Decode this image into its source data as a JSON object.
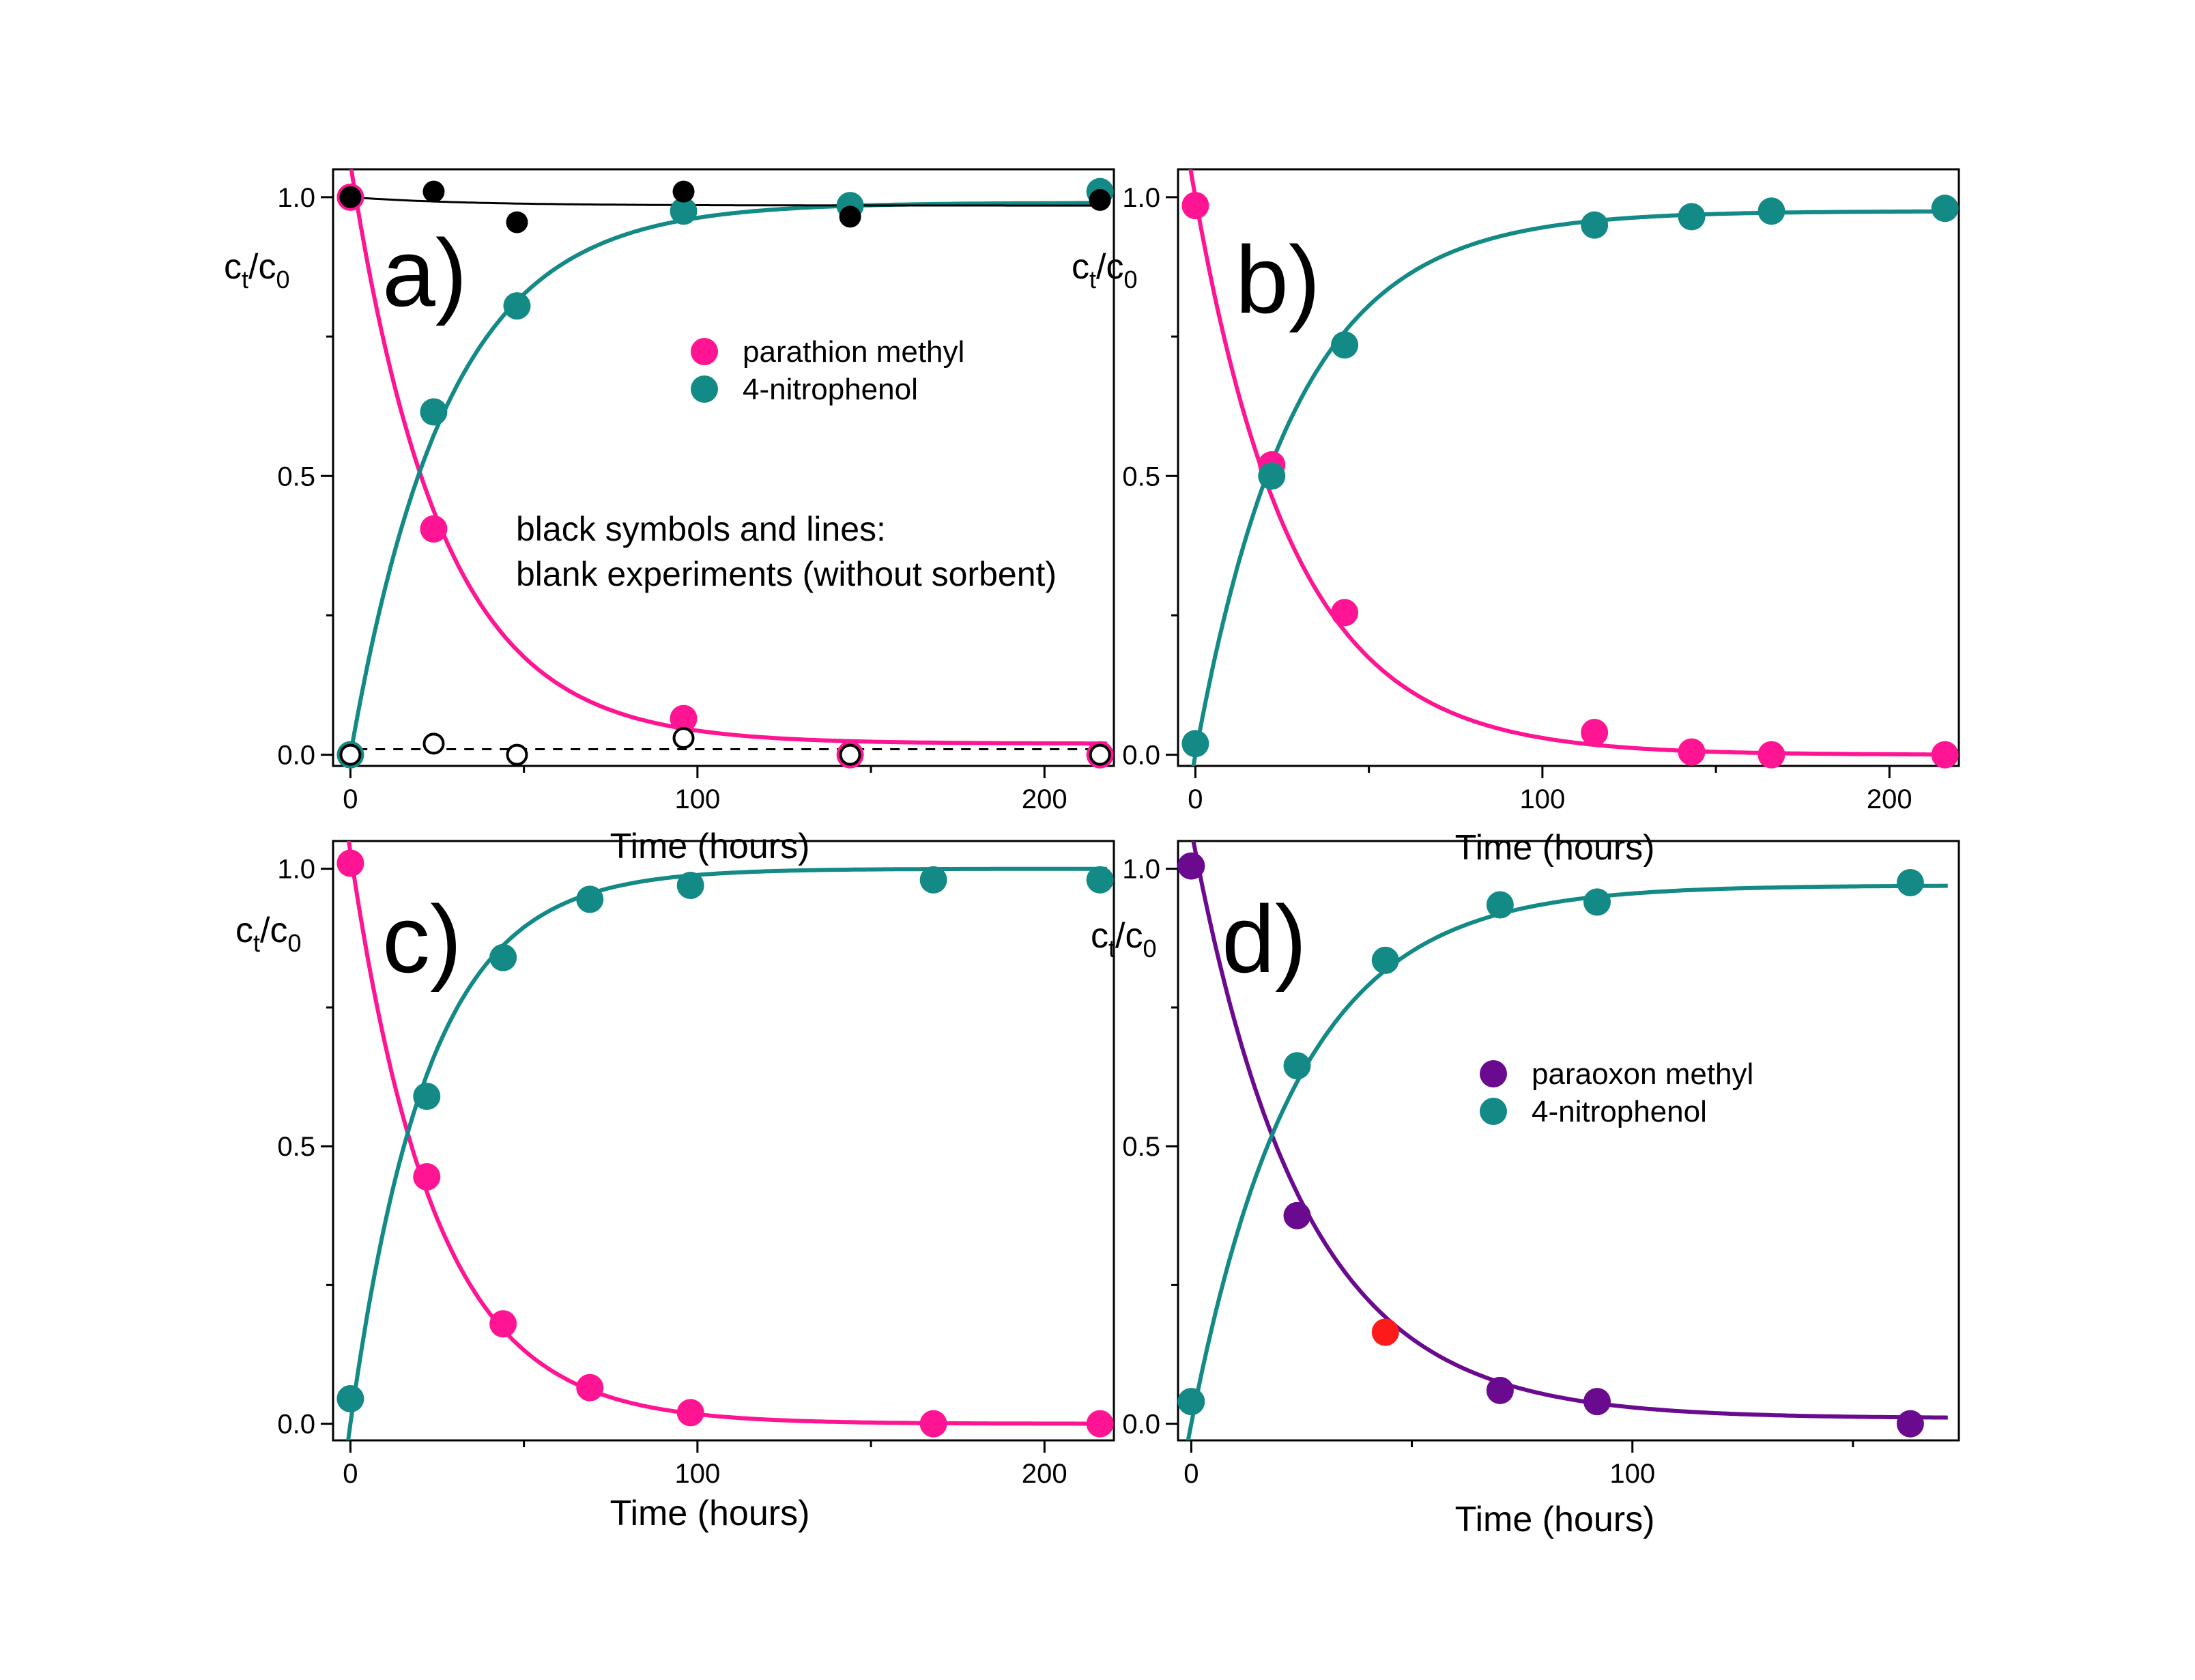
{
  "colors": {
    "pink": "#FF1493",
    "teal": "#138A85",
    "purple": "#6A0A8F",
    "red": "#FF1A1A",
    "black": "#000000"
  },
  "chart_data": [
    {
      "type": "scatter",
      "panel_label": "a)",
      "xlabel": "Time (hours)",
      "ylabel_main": "c",
      "ylabel_sub1": "t",
      "ylabel_mid": "/c",
      "ylabel_sub2": "0",
      "xlim": [
        -5,
        220
      ],
      "ylim": [
        -0.02,
        1.05
      ],
      "xticks": [
        0,
        100,
        200
      ],
      "xtick_labels": [
        "0",
        "100",
        "200"
      ],
      "yticks": [
        0,
        0.5,
        1
      ],
      "ytick_labels": [
        "0.0",
        "0.5",
        "1.0"
      ],
      "legend": [
        {
          "name": "parathion methyl",
          "color": "#FF1493"
        },
        {
          "name": "4-nitrophenol",
          "color": "#138A85"
        }
      ],
      "annotation": [
        "black symbols and lines:",
        "blank experiments (without sorbent)"
      ],
      "series": [
        {
          "name": "parathion methyl",
          "color": "#FF1493",
          "marker": "filled",
          "x": [
            0,
            24,
            96,
            144,
            216
          ],
          "y": [
            1.0,
            0.405,
            0.065,
            0.0,
            0.0
          ],
          "fit": {
            "type": "decay",
            "y0": 1.06,
            "plateau": 0.02,
            "k": 0.038,
            "style": "solid"
          }
        },
        {
          "name": "4-nitrophenol",
          "color": "#138A85",
          "marker": "filled",
          "x": [
            0,
            24,
            48,
            96,
            144,
            216
          ],
          "y": [
            0.0,
            0.615,
            0.805,
            0.975,
            0.985,
            1.01
          ],
          "fit": {
            "type": "rise",
            "plateau": 0.99,
            "k": 0.036,
            "style": "solid"
          }
        },
        {
          "name": "blank parathion methyl",
          "color": "#000000",
          "marker": "filled",
          "x": [
            0,
            24,
            48,
            96,
            144,
            216
          ],
          "y": [
            1.0,
            1.01,
            0.955,
            1.01,
            0.965,
            0.995
          ],
          "fit": {
            "type": "decay",
            "y0": 1.0,
            "plateau": 0.985,
            "k": 0.03,
            "style": "solid"
          }
        },
        {
          "name": "blank 4-nitrophenol",
          "color": "#000000",
          "marker": "open",
          "x": [
            0,
            24,
            48,
            96,
            144,
            216
          ],
          "y": [
            0.0,
            0.02,
            0.0,
            0.03,
            0.0,
            0.0
          ],
          "fit": {
            "type": "line",
            "a": 0.01,
            "b": 0.0,
            "style": "dashed"
          }
        }
      ]
    },
    {
      "type": "scatter",
      "panel_label": "b)",
      "xlabel": "Time (hours)",
      "ylabel_main": "c",
      "ylabel_sub1": "t",
      "ylabel_mid": "/c",
      "ylabel_sub2": "0",
      "xlim": [
        -5,
        220
      ],
      "ylim": [
        -0.02,
        1.05
      ],
      "xticks": [
        0,
        100,
        200
      ],
      "xtick_labels": [
        "0",
        "100",
        "200"
      ],
      "yticks": [
        0,
        0.5,
        1
      ],
      "ytick_labels": [
        "0.0",
        "0.5",
        "1.0"
      ],
      "series": [
        {
          "name": "parathion methyl",
          "color": "#FF1493",
          "marker": "filled",
          "x": [
            0,
            22,
            43,
            115,
            143,
            166,
            216
          ],
          "y": [
            0.985,
            0.52,
            0.255,
            0.04,
            0.005,
            0.0,
            0.0
          ],
          "fit": {
            "type": "decay",
            "y0": 1.0,
            "plateau": 0.0,
            "k": 0.035,
            "style": "solid"
          }
        },
        {
          "name": "4-nitrophenol",
          "color": "#138A85",
          "marker": "filled",
          "x": [
            0,
            22,
            43,
            115,
            143,
            166,
            216
          ],
          "y": [
            0.02,
            0.5,
            0.735,
            0.95,
            0.965,
            0.975,
            0.98
          ],
          "fit": {
            "type": "rise",
            "plateau": 0.975,
            "k": 0.035,
            "style": "solid"
          }
        }
      ]
    },
    {
      "type": "scatter",
      "panel_label": "c)",
      "xlabel": "Time (hours)",
      "ylabel_main": "c",
      "ylabel_sub1": "t",
      "ylabel_mid": "/c",
      "ylabel_sub2": "0",
      "xlim": [
        -5,
        220
      ],
      "ylim": [
        -0.03,
        1.05
      ],
      "xticks": [
        0,
        100,
        200
      ],
      "xtick_labels": [
        "0",
        "100",
        "200"
      ],
      "yticks": [
        0,
        0.5,
        1
      ],
      "ytick_labels": [
        "0.0",
        "0.5",
        "1.0"
      ],
      "series": [
        {
          "name": "parathion methyl",
          "color": "#FF1493",
          "marker": "filled",
          "x": [
            0,
            22,
            44,
            69,
            98,
            168,
            216
          ],
          "y": [
            1.01,
            0.445,
            0.18,
            0.065,
            0.02,
            0.0,
            0.0
          ],
          "fit": {
            "type": "decay",
            "y0": 1.03,
            "plateau": 0.0,
            "k": 0.041,
            "style": "solid"
          }
        },
        {
          "name": "4-nitrophenol",
          "color": "#138A85",
          "marker": "filled",
          "x": [
            0,
            22,
            44,
            69,
            98,
            168,
            216
          ],
          "y": [
            0.045,
            0.59,
            0.84,
            0.945,
            0.97,
            0.98,
            0.98
          ],
          "fit": {
            "type": "rise",
            "plateau": 1.0,
            "k": 0.045,
            "style": "solid"
          }
        }
      ]
    },
    {
      "type": "scatter",
      "panel_label": "d)",
      "xlabel": "Time (hours)",
      "ylabel_main": "c",
      "ylabel_sub1": "t",
      "ylabel_mid": "/c",
      "ylabel_sub2": "0",
      "xlim": [
        -3,
        174
      ],
      "ylim": [
        -0.03,
        1.05
      ],
      "xticks": [
        0,
        100
      ],
      "xtick_labels": [
        "0",
        "100"
      ],
      "yticks": [
        0,
        0.5,
        1
      ],
      "ytick_labels": [
        "0.0",
        "0.5",
        "1.0"
      ],
      "legend": [
        {
          "name": "paraoxon methyl",
          "color": "#6A0A8F"
        },
        {
          "name": "4-nitrophenol",
          "color": "#138A85"
        }
      ],
      "series": [
        {
          "name": "paraoxon methyl",
          "color": "#6A0A8F",
          "marker": "filled",
          "x": [
            0,
            24,
            44,
            70,
            92,
            163
          ],
          "y": [
            1.005,
            0.375,
            0.165,
            0.06,
            0.04,
            0.0
          ],
          "fit": {
            "type": "decay",
            "y0": 1.07,
            "plateau": 0.01,
            "k": 0.04,
            "style": "solid"
          },
          "highlight": {
            "index": 2,
            "color": "#FF1A1A"
          }
        },
        {
          "name": "4-nitrophenol",
          "color": "#138A85",
          "marker": "filled",
          "x": [
            0,
            24,
            44,
            70,
            92,
            163
          ],
          "y": [
            0.04,
            0.645,
            0.835,
            0.935,
            0.94,
            0.975
          ],
          "fit": {
            "type": "rise",
            "plateau": 0.97,
            "k": 0.042,
            "style": "solid"
          }
        }
      ]
    }
  ]
}
